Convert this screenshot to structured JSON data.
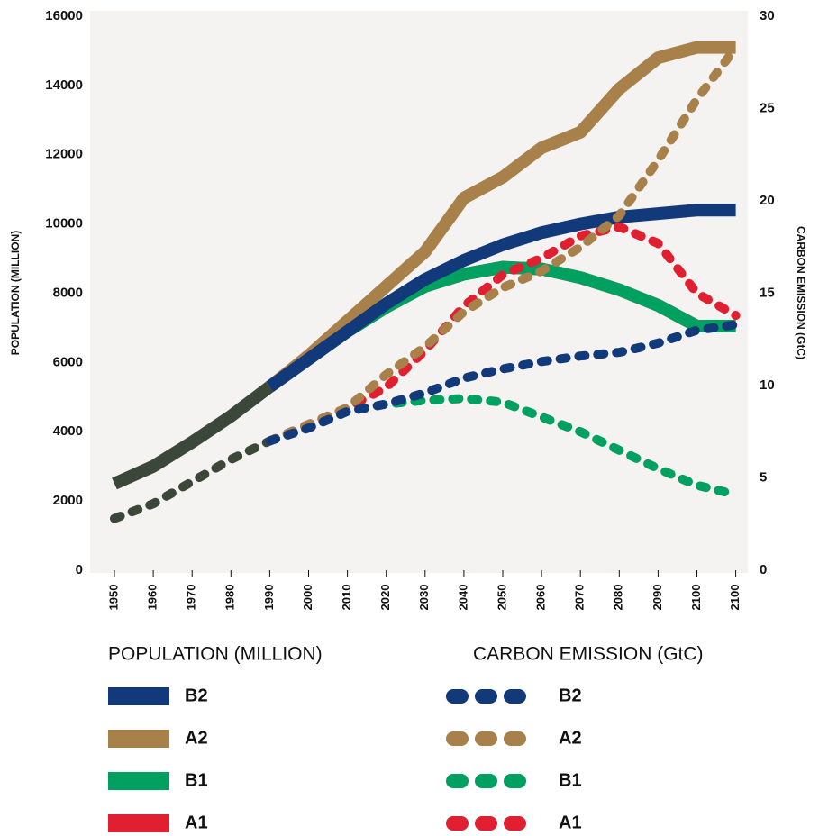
{
  "chart_data": {
    "type": "line",
    "categories": [
      "1950",
      "1960",
      "1970",
      "1980",
      "1990",
      "2000",
      "2010",
      "2020",
      "2030",
      "2040",
      "2050",
      "2060",
      "2070",
      "2080",
      "2090",
      "2100",
      "2100"
    ],
    "ylabel": "POPULATION (MILLION)",
    "y2label": "CARBON EMISSION (GtC)",
    "ylim": [
      0,
      16000
    ],
    "yticks": [
      0,
      2000,
      4000,
      6000,
      8000,
      10000,
      12000,
      14000,
      16000
    ],
    "y2lim": [
      0,
      30
    ],
    "y2ticks": [
      0,
      5,
      10,
      15,
      20,
      25,
      30
    ],
    "series": [
      {
        "name": "B2",
        "color": "#123a7a",
        "values": [
          null,
          null,
          null,
          null,
          5300,
          6100,
          6900,
          7700,
          8400,
          8950,
          9400,
          9750,
          10000,
          10200,
          10300,
          10400,
          10400
        ]
      },
      {
        "name": "A2",
        "color": "#a8804a",
        "values": [
          null,
          null,
          null,
          null,
          5300,
          6200,
          7200,
          8200,
          9200,
          10750,
          11350,
          12200,
          12650,
          13900,
          14800,
          15100,
          15100
        ]
      },
      {
        "name": "B1",
        "color": "#00a060",
        "values": [
          null,
          null,
          null,
          null,
          5300,
          6100,
          6900,
          7600,
          8200,
          8550,
          8750,
          8700,
          8450,
          8100,
          7650,
          7050,
          7050
        ]
      },
      {
        "name": "A1",
        "color": "#e02030",
        "values": [
          null,
          null,
          null,
          null,
          5300,
          6100,
          6900,
          7600,
          8200,
          8550,
          8750,
          8700,
          8450,
          8100,
          7650,
          7050,
          7050
        ]
      },
      {
        "color": "#3b4738",
        "values": [
          2500,
          3000,
          3700,
          4450,
          5300,
          null,
          null,
          null,
          null,
          null,
          null,
          null,
          null,
          null,
          null,
          null,
          null
        ]
      },
      {
        "name": "B2",
        "color": "#123a7a",
        "axis": "y2",
        "values": [
          null,
          null,
          null,
          null,
          7.0,
          7.7,
          8.6,
          9.0,
          9.6,
          10.4,
          10.9,
          11.3,
          11.6,
          11.8,
          12.3,
          13.0,
          13.3
        ]
      },
      {
        "name": "A2",
        "color": "#a8804a",
        "axis": "y2",
        "values": [
          null,
          null,
          null,
          null,
          7.0,
          7.9,
          8.8,
          10.6,
          12.1,
          14.0,
          15.3,
          16.2,
          17.5,
          19.2,
          22.2,
          25.5,
          28.3
        ]
      },
      {
        "name": "B1",
        "color": "#00a060",
        "axis": "y2",
        "values": [
          null,
          null,
          null,
          null,
          7.0,
          7.8,
          8.6,
          9.0,
          9.2,
          9.3,
          9.1,
          8.3,
          7.5,
          6.5,
          5.5,
          4.6,
          4.1
        ]
      },
      {
        "name": "A1",
        "color": "#e02030",
        "axis": "y2",
        "values": [
          null,
          null,
          null,
          null,
          7.0,
          7.9,
          8.8,
          9.9,
          11.9,
          14.3,
          16.0,
          16.9,
          18.1,
          18.6,
          17.7,
          15.0,
          13.8
        ]
      },
      {
        "color": "#3b4738",
        "axis": "y2",
        "values": [
          2.8,
          3.6,
          4.8,
          6.0,
          7.0,
          null,
          null,
          null,
          null,
          null,
          null,
          null,
          null,
          null,
          null,
          null,
          null
        ]
      }
    ]
  }
}
